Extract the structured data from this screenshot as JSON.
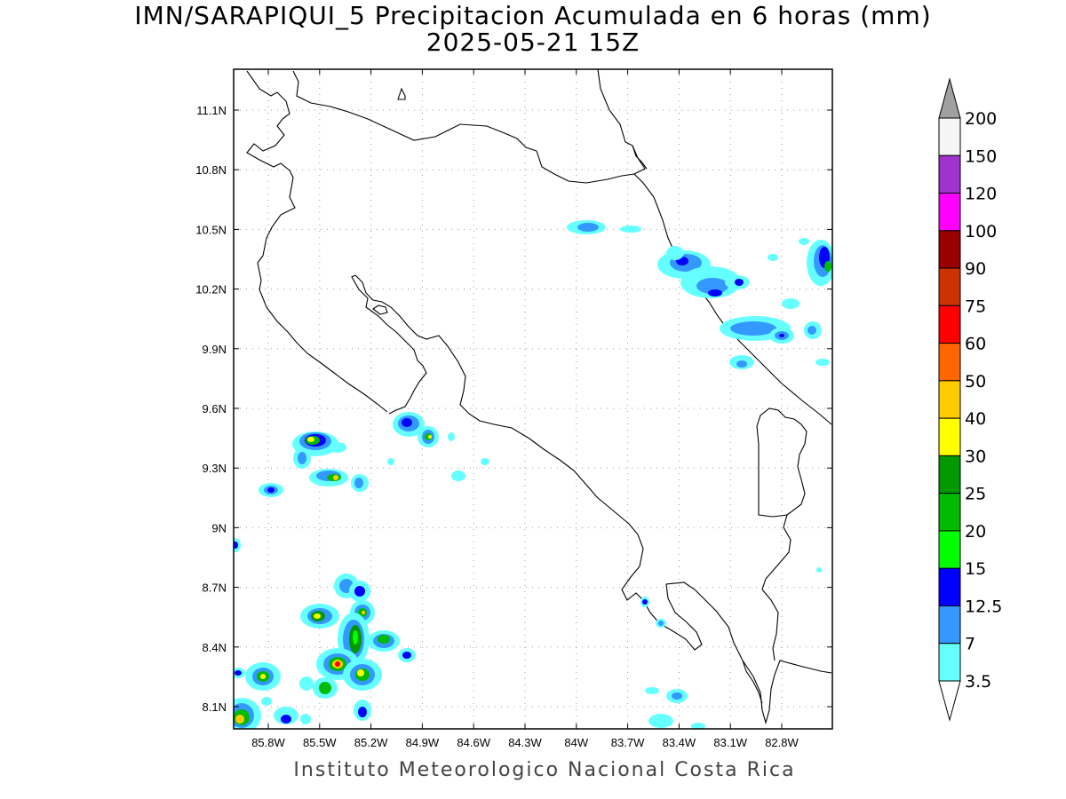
{
  "title": {
    "line1": "IMN/SARAPIQUI_5 Precipitacion Acumulada en 6 horas (mm)",
    "line2": "2025-05-21 15Z"
  },
  "footer": "Instituto Meteorologico Nacional Costa Rica",
  "map": {
    "lat_ticks": [
      "11.1N",
      "10.8N",
      "10.5N",
      "10.2N",
      "9.9N",
      "9.6N",
      "9.3N",
      "9N",
      "8.7N",
      "8.4N",
      "8.1N"
    ],
    "lon_ticks": [
      "85.8W",
      "85.5W",
      "85.2W",
      "84.9W",
      "84.6W",
      "84.3W",
      "84W",
      "83.7W",
      "83.4W",
      "83.1W",
      "82.8W"
    ]
  },
  "colorbar": {
    "levels": [
      "200",
      "150",
      "120",
      "100",
      "90",
      "75",
      "60",
      "50",
      "40",
      "30",
      "25",
      "20",
      "15",
      "12.5",
      "7",
      "3.5"
    ],
    "colors": [
      "#f5f5f5",
      "#a033cc",
      "#ff00ff",
      "#990000",
      "#cc3300",
      "#ff0000",
      "#ff6600",
      "#ffcc00",
      "#ffff00",
      "#009900",
      "#00bb00",
      "#00ff00",
      "#0000ff",
      "#3399ff",
      "#66ffff"
    ],
    "over_color": "#a0a0a0",
    "under_color": "#ffffff"
  }
}
